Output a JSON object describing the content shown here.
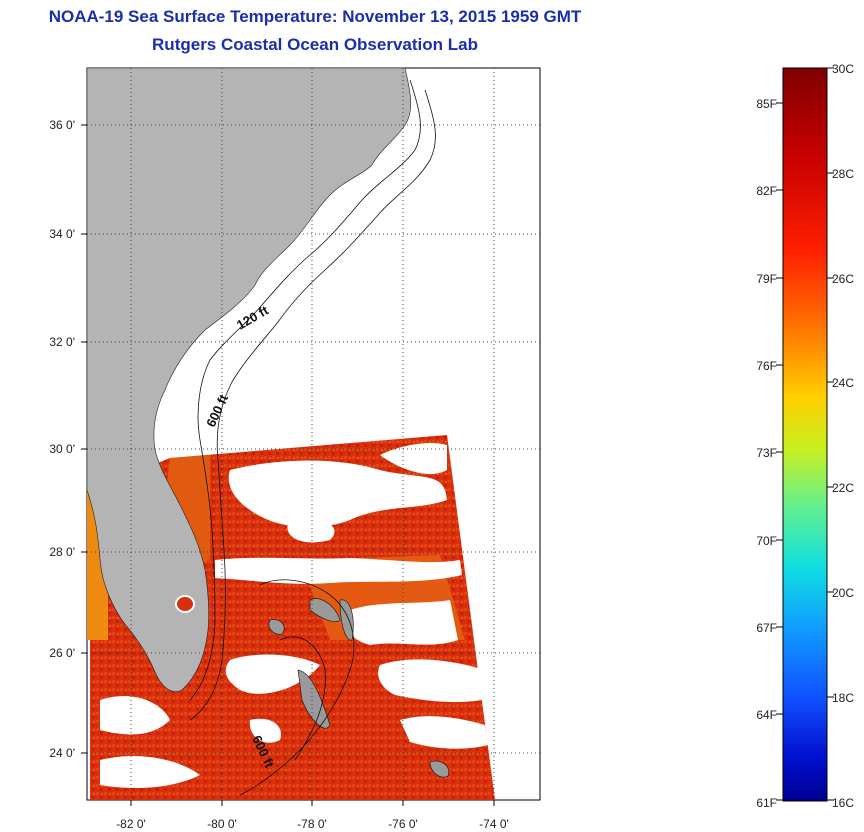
{
  "header": {
    "title": "NOAA-19 Sea Surface Temperature:  November 13, 2015 1959 GMT",
    "subtitle": "Rutgers Coastal Ocean Observation Lab"
  },
  "map": {
    "lon_ticks": [
      "-82 0'",
      "-80 0'",
      "-78 0'",
      "-76 0'",
      "-74 0'"
    ],
    "lat_ticks": [
      "36 0'",
      "34 0'",
      "32 0'",
      "30 0'",
      "28 0'",
      "26 0'",
      "24 0'"
    ],
    "lon_range": [
      -83,
      -73
    ],
    "lat_range": [
      23,
      37
    ],
    "grid": true,
    "contour_labels": [
      "120 ft",
      "600 ft",
      "600 ft"
    ]
  },
  "colorbar": {
    "celsius_labels": [
      "30C",
      "28C",
      "26C",
      "24C",
      "22C",
      "20C",
      "18C",
      "16C"
    ],
    "fahrenheit_labels": [
      "85F",
      "82F",
      "79F",
      "76F",
      "73F",
      "70F",
      "67F",
      "64F",
      "61F"
    ],
    "range_c": [
      16,
      30
    ]
  },
  "colors": {
    "title": "#1a2fa8",
    "land": "#b4b4b4",
    "sst_warm": "#d42a0c",
    "sst_orange": "#ee6a10"
  }
}
